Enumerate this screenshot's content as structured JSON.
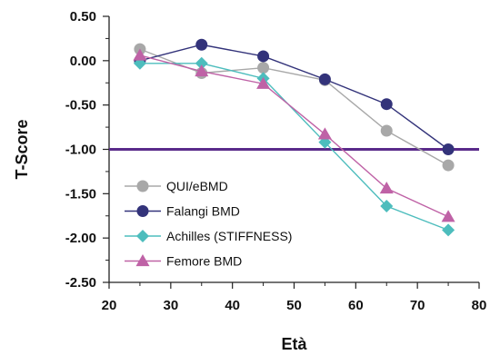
{
  "chart_data": {
    "type": "line",
    "title": "",
    "xlabel": "Età",
    "ylabel": "T-Score",
    "xlim": [
      20,
      80
    ],
    "ylim": [
      -2.5,
      0.5
    ],
    "x_ticks": [
      "20",
      "30",
      "40",
      "50",
      "60",
      "70",
      "80"
    ],
    "y_ticks": [
      "0.50",
      "0.00",
      "-0.50",
      "-1.00",
      "-1.50",
      "-2.00",
      "-2.50"
    ],
    "grid": false,
    "legend_position": "bottom-left",
    "reference_line": {
      "y": -1.0,
      "color": "#5a2a8a"
    },
    "x": [
      25,
      35,
      45,
      55,
      65,
      75
    ],
    "series": [
      {
        "name": "QUI/eBMD",
        "values": [
          0.13,
          -0.14,
          -0.08,
          -0.22,
          -0.79,
          -1.18
        ],
        "color": "#a8a8a8",
        "marker": "circle"
      },
      {
        "name": "Falangi BMD",
        "values": [
          0.0,
          0.18,
          0.05,
          -0.21,
          -0.49,
          -1.0
        ],
        "color": "#33337a",
        "marker": "circle"
      },
      {
        "name": "Achilles (STIFFNESS)",
        "values": [
          -0.03,
          -0.03,
          -0.2,
          -0.92,
          -1.64,
          -1.91
        ],
        "color": "#4dbdbd",
        "marker": "diamond"
      },
      {
        "name": "Femore BMD",
        "values": [
          0.06,
          -0.12,
          -0.26,
          -0.83,
          -1.44,
          -1.76
        ],
        "color": "#bf62a6",
        "marker": "triangle"
      }
    ]
  }
}
